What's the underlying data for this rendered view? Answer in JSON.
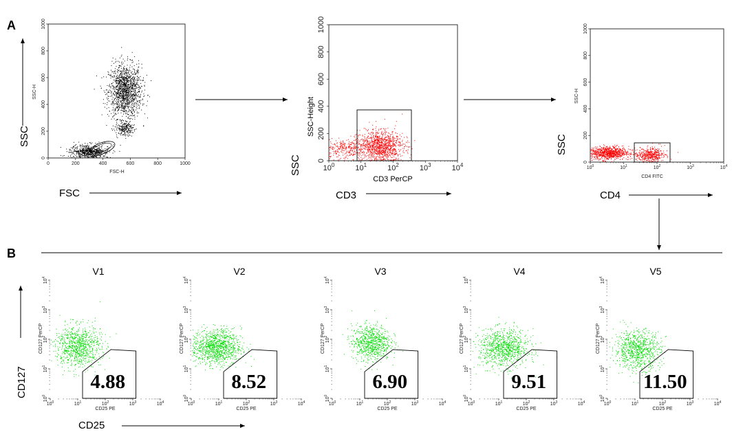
{
  "panel_letters": {
    "a": "A",
    "b": "B"
  },
  "panel_a": {
    "fsc_ssc": {
      "x_title": "FSC-H",
      "y_title": "SSC-H",
      "x_ticks": [
        "0",
        "200",
        "400",
        "600",
        "800",
        "1000"
      ],
      "y_ticks": [
        "0",
        "200",
        "400",
        "600",
        "800",
        "1000"
      ],
      "outer_x": "FSC",
      "outer_y": "SSC",
      "point_color": "#000000"
    },
    "cd3": {
      "x_title": "CD3 PerCP",
      "y_title": "SSC-Height",
      "x_ticks": [
        "10^0",
        "10^1",
        "10^2",
        "10^3",
        "10^4"
      ],
      "y_ticks": [
        "0",
        "200",
        "400",
        "600",
        "800",
        "1000"
      ],
      "outer_x": "CD3",
      "outer_y": "SSC",
      "point_color": "#ff0000"
    },
    "cd4": {
      "x_title": "CD4 FITC",
      "y_title": "SSC-H",
      "x_ticks": [
        "10^0",
        "10^1",
        "10^2",
        "10^3",
        "10^4"
      ],
      "y_ticks": [
        "0",
        "200",
        "400",
        "600",
        "800",
        "1000"
      ],
      "outer_x": "CD4",
      "outer_y": "SSC",
      "point_color": "#ff0000"
    }
  },
  "panel_b": {
    "x_title": "CD25 PE",
    "y_title": "CD127 PerCP",
    "x_ticks": [
      "10^0",
      "10^1",
      "10^2",
      "10^3",
      "10^4"
    ],
    "y_ticks": [
      "10^0",
      "10^1",
      "10^2",
      "10^3",
      "10^4"
    ],
    "outer_x": "CD25",
    "outer_y": "CD127",
    "point_color": "#00dd00"
  },
  "chart_data": [
    {
      "type": "scatter",
      "title": "",
      "xlabel": "FSC-H",
      "ylabel": "SSC-H",
      "xlim": [
        0,
        1000
      ],
      "ylim": [
        0,
        1000
      ],
      "clusters": [
        {
          "center": [
            560,
            500
          ],
          "spread": [
            60,
            100
          ],
          "n": 1400
        },
        {
          "center": [
            300,
            50
          ],
          "spread": [
            70,
            25
          ],
          "n": 650
        },
        {
          "center": [
            560,
            220
          ],
          "spread": [
            35,
            25
          ],
          "n": 200
        }
      ],
      "gate": {
        "shape": "ellipse",
        "center_x": 390,
        "center_y": 75,
        "radius_x": 95,
        "radius_y": 40
      }
    },
    {
      "type": "scatter",
      "xlabel": "CD3 PerCP",
      "ylabel": "SSC-Height",
      "x_scale": "log",
      "xlim": [
        1,
        10000
      ],
      "ylim": [
        0,
        1000
      ],
      "clusters": [
        {
          "center": [
            40,
            110
          ],
          "spread": [
            0.35,
            55
          ],
          "n": 1100
        },
        {
          "center": [
            3,
            90
          ],
          "spread": [
            0.45,
            35
          ],
          "n": 350
        }
      ],
      "gate": {
        "shape": "rect",
        "x": [
          9,
          350
        ],
        "y": [
          0,
          370
        ]
      }
    },
    {
      "type": "scatter",
      "xlabel": "CD4 FITC",
      "ylabel": "SSC-H",
      "x_scale": "log",
      "xlim": [
        1,
        10000
      ],
      "ylim": [
        0,
        1000
      ],
      "clusters": [
        {
          "center": [
            3.5,
            70
          ],
          "spread": [
            0.3,
            25
          ],
          "n": 900
        },
        {
          "center": [
            60,
            55
          ],
          "spread": [
            0.22,
            25
          ],
          "n": 450
        }
      ],
      "gate": {
        "shape": "rect",
        "x": [
          25,
          250
        ],
        "y": [
          10,
          160
        ]
      }
    },
    {
      "type": "scatter",
      "panel": "V1",
      "xlabel": "CD25 PE",
      "ylabel": "CD127 PerCP",
      "x_scale": "log",
      "y_scale": "log",
      "xlim": [
        1,
        10000
      ],
      "ylim": [
        1,
        10000
      ],
      "gate_value": "4.88",
      "gate": {
        "shape": "polygon",
        "points": [
          [
            15,
            1
          ],
          [
            1300,
            1
          ],
          [
            1300,
            40
          ],
          [
            160,
            45
          ],
          [
            15,
            8
          ]
        ]
      },
      "clusters": [
        {
          "center": [
            10,
            60
          ],
          "spread": [
            0.42,
            0.35
          ],
          "n": 900
        }
      ]
    },
    {
      "type": "scatter",
      "panel": "V2",
      "xlabel": "CD25 PE",
      "ylabel": "CD127 PerCP",
      "x_scale": "log",
      "y_scale": "log",
      "xlim": [
        1,
        10000
      ],
      "ylim": [
        1,
        10000
      ],
      "gate_value": "8.52",
      "gate": {
        "shape": "polygon",
        "points": [
          [
            15,
            1
          ],
          [
            1300,
            1
          ],
          [
            1300,
            40
          ],
          [
            160,
            45
          ],
          [
            15,
            8
          ]
        ]
      },
      "clusters": [
        {
          "center": [
            8,
            55
          ],
          "spread": [
            0.45,
            0.3
          ],
          "n": 1100
        }
      ]
    },
    {
      "type": "scatter",
      "panel": "V3",
      "xlabel": "CD25 PE",
      "ylabel": "CD127 PerCP",
      "x_scale": "log",
      "y_scale": "log",
      "xlim": [
        1,
        10000
      ],
      "ylim": [
        1,
        10000
      ],
      "gate_value": "6.90",
      "gate": {
        "shape": "polygon",
        "points": [
          [
            15,
            1
          ],
          [
            1300,
            1
          ],
          [
            1300,
            40
          ],
          [
            160,
            45
          ],
          [
            15,
            8
          ]
        ]
      },
      "clusters": [
        {
          "center": [
            25,
            80
          ],
          "spread": [
            0.35,
            0.3
          ],
          "n": 800
        }
      ]
    },
    {
      "type": "scatter",
      "panel": "V4",
      "xlabel": "CD25 PE",
      "ylabel": "CD127 PerCP",
      "x_scale": "log",
      "y_scale": "log",
      "xlim": [
        1,
        10000
      ],
      "ylim": [
        1,
        10000
      ],
      "gate_value": "9.51",
      "gate": {
        "shape": "polygon",
        "points": [
          [
            15,
            1
          ],
          [
            1300,
            1
          ],
          [
            1300,
            40
          ],
          [
            160,
            45
          ],
          [
            15,
            8
          ]
        ]
      },
      "clusters": [
        {
          "center": [
            15,
            50
          ],
          "spread": [
            0.45,
            0.32
          ],
          "n": 950
        }
      ]
    },
    {
      "type": "scatter",
      "panel": "V5",
      "xlabel": "CD25 PE",
      "ylabel": "CD127 PerCP",
      "x_scale": "log",
      "y_scale": "log",
      "xlim": [
        1,
        10000
      ],
      "ylim": [
        1,
        10000
      ],
      "gate_value": "11.50",
      "gate": {
        "shape": "polygon",
        "points": [
          [
            15,
            1
          ],
          [
            1300,
            1
          ],
          [
            1300,
            40
          ],
          [
            160,
            45
          ],
          [
            15,
            8
          ]
        ]
      },
      "clusters": [
        {
          "center": [
            12,
            45
          ],
          "spread": [
            0.42,
            0.33
          ],
          "n": 850
        }
      ]
    }
  ]
}
